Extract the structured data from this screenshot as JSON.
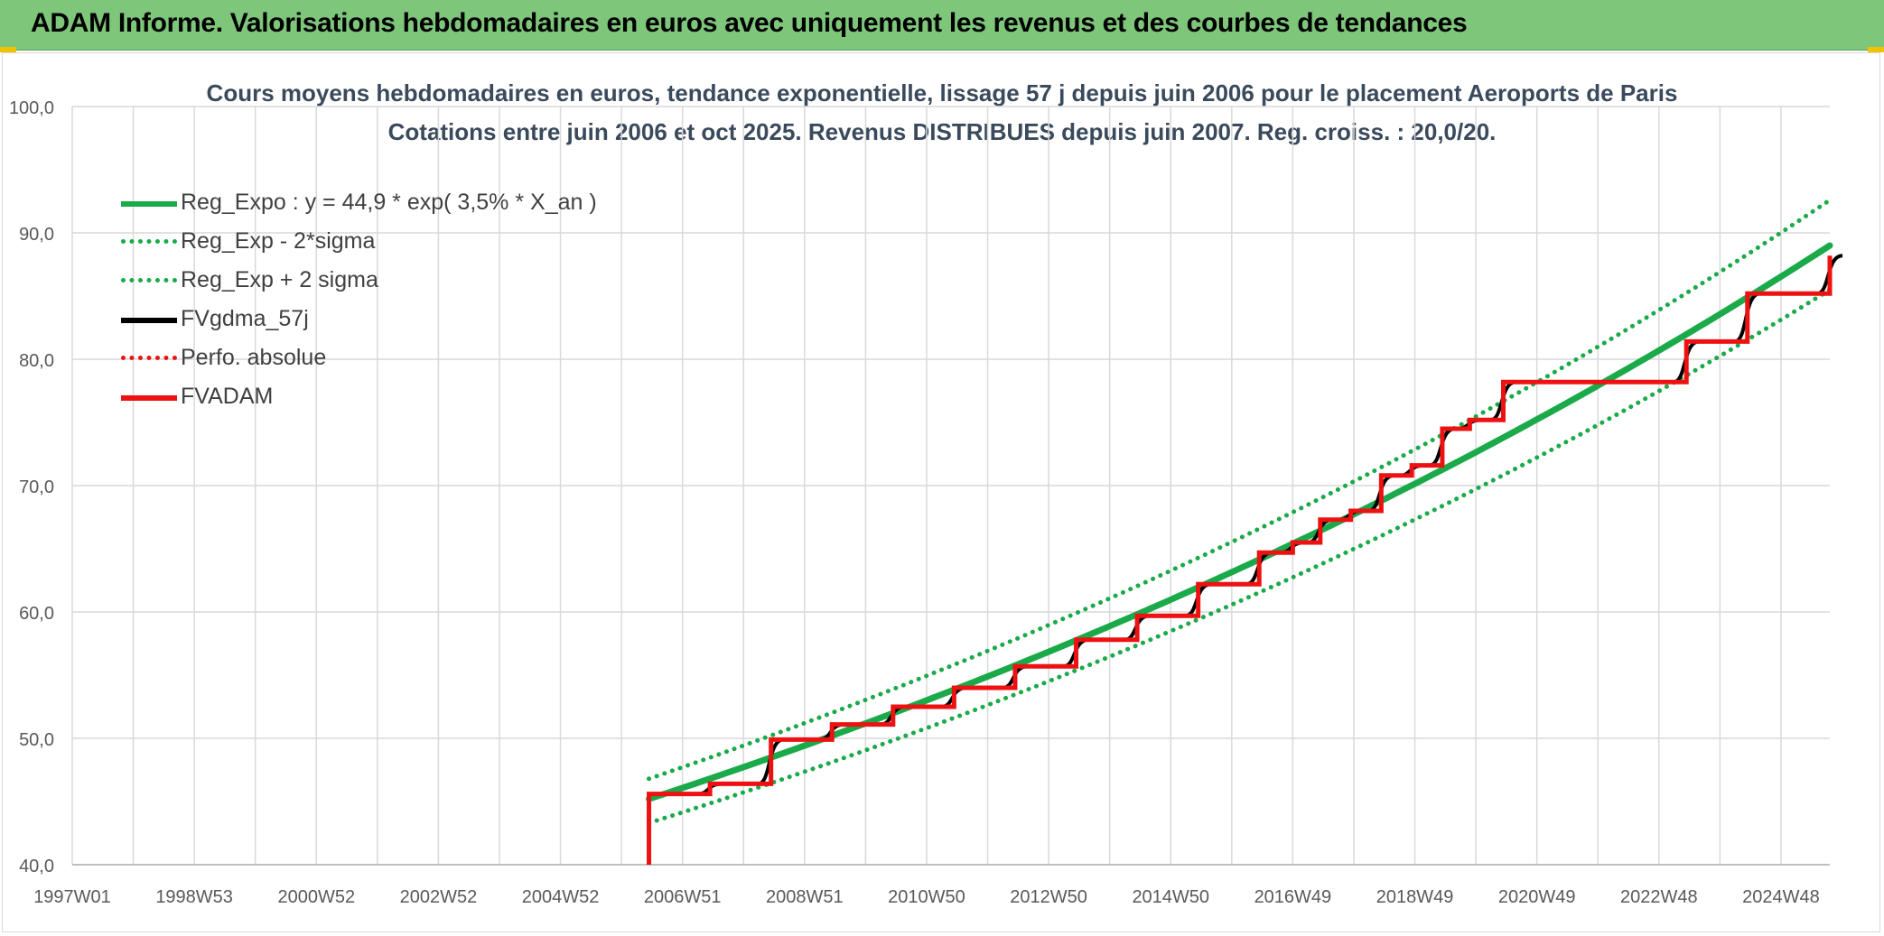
{
  "banner": {
    "title": "ADAM Informe. Valorisations hebdomadaires en euros avec uniquement les revenus et des courbes de tendances"
  },
  "chart_data": {
    "type": "line",
    "title": "Cours moyens hebdomadaires en euros, tendance exponentielle, lissage 57 j depuis juin 2006 pour le placement Aeroports de Paris",
    "subtitle": "Cotations entre juin 2006 et oct 2025. Revenus DISTRIBUES depuis juin 2007. Reg. croiss. : 20,0/20.",
    "xlabel": "",
    "ylabel": "",
    "ylim": [
      40,
      100
    ],
    "yticks": [
      "100,0",
      "90,0",
      "80,0",
      "70,0",
      "60,0",
      "50,0",
      "40,0"
    ],
    "ytick_values": [
      100,
      90,
      80,
      70,
      60,
      50,
      40
    ],
    "xlim": [
      1997.0,
      2025.8
    ],
    "xticks": [
      "1997W01",
      "1998W53",
      "2000W52",
      "2002W52",
      "2004W52",
      "2006W51",
      "2008W51",
      "2010W50",
      "2012W50",
      "2014W50",
      "2016W49",
      "2018W49",
      "2020W49",
      "2022W48",
      "2024W48"
    ],
    "xtick_values": [
      1997.0,
      1999.0,
      2001.0,
      2003.0,
      2005.0,
      2007.0,
      2009.0,
      2011.0,
      2013.0,
      2015.0,
      2017.0,
      2019.0,
      2021.0,
      2023.0,
      2025.0
    ],
    "grid": true,
    "legend_position": "top-left",
    "series": [
      {
        "name": "Reg_Expo : y = 44,9 * exp( 3,5% *  X_an )",
        "color": "#1aaa4a",
        "style": "solid",
        "x": [
          2006.45,
          2025.8
        ],
        "y": [
          45.2,
          89.0
        ],
        "curve": "exponential"
      },
      {
        "name": "Reg_Exp - 2*sigma",
        "color": "#1aaa4a",
        "style": "dotted",
        "x": [
          2006.45,
          2025.8
        ],
        "y": [
          43.3,
          85.5
        ],
        "curve": "exponential"
      },
      {
        "name": "Reg_Exp + 2 sigma",
        "color": "#1aaa4a",
        "style": "dotted",
        "x": [
          2006.45,
          2025.8
        ],
        "y": [
          46.8,
          92.6
        ],
        "curve": "exponential"
      },
      {
        "name": "FVgdma_57j",
        "color": "#000000",
        "style": "smooth-step",
        "x": [
          2006.45,
          2007.45,
          2008.45,
          2009.45,
          2010.45,
          2011.45,
          2012.45,
          2013.45,
          2014.45,
          2015.45,
          2016.45,
          2017.0,
          2017.45,
          2017.95,
          2018.45,
          2018.95,
          2019.45,
          2019.9,
          2020.45,
          2022.45,
          2023.45,
          2024.45,
          2025.8
        ],
        "y": [
          45.6,
          46.4,
          49.9,
          51.1,
          52.5,
          54.0,
          55.7,
          57.8,
          59.7,
          62.2,
          64.7,
          65.5,
          67.3,
          68.0,
          70.8,
          71.6,
          74.5,
          75.2,
          78.2,
          78.2,
          81.4,
          85.2,
          88.2
        ]
      },
      {
        "name": "Perfo. absolue",
        "color": "#ee1111",
        "style": "dotted",
        "x": [],
        "y": []
      },
      {
        "name": "FVADAM",
        "color": "#ee1111",
        "style": "step",
        "x": [
          2006.45,
          2007.45,
          2008.45,
          2009.45,
          2010.45,
          2011.45,
          2012.45,
          2013.45,
          2014.45,
          2015.45,
          2016.45,
          2017.0,
          2017.45,
          2017.95,
          2018.45,
          2018.95,
          2019.45,
          2019.9,
          2020.45,
          2022.45,
          2023.45,
          2024.45,
          2025.8
        ],
        "y": [
          45.6,
          46.4,
          49.9,
          51.1,
          52.5,
          54.0,
          55.7,
          57.8,
          59.7,
          62.2,
          64.7,
          65.5,
          67.3,
          68.0,
          70.8,
          71.6,
          74.5,
          75.2,
          78.2,
          78.2,
          81.4,
          85.2,
          88.2
        ],
        "start_drop_to": 40.0
      }
    ]
  }
}
